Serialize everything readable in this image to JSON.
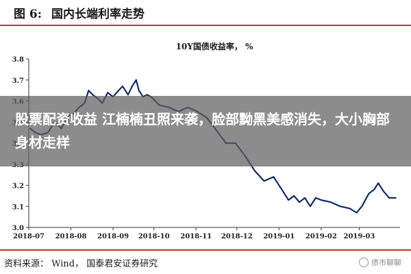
{
  "figure": {
    "number_label": "图 6:",
    "title": "国内长端利率走势"
  },
  "overlay": {
    "headline": "股票配资收益 江楠楠丑照来袭，脸部黝黑美感消失，大小胸部身材走样"
  },
  "source_line": "资料来源：  Wind，  国泰君安证券研究",
  "watermark": {
    "text": "债市聊聊",
    "icon": "circle-logo-icon"
  },
  "colors": {
    "line": "#0f2a6b",
    "accent": "#c03030"
  },
  "chart_data": {
    "type": "line",
    "title": "10Y国债收益率，  %",
    "xlabel": "",
    "ylabel": "",
    "ylim": [
      3.0,
      3.8
    ],
    "yticks": [
      "3.0",
      "3.1",
      "3.2",
      "3.3",
      "3.4",
      "3.5",
      "3.6",
      "3.7",
      "3.8"
    ],
    "xlim": [
      "2018-07-01",
      "2019-03-31"
    ],
    "xticks": [
      "2018-07",
      "2018-08",
      "2018-09",
      "2018-10",
      "2018-11",
      "2018-12",
      "2019-01",
      "2019-02",
      "2019-03"
    ],
    "grid": false,
    "legend": "none",
    "series": [
      {
        "x": [
          "2018-07-02",
          "2018-07-06",
          "2018-07-10",
          "2018-07-15",
          "2018-07-20",
          "2018-07-25",
          "2018-07-30",
          "2018-08-03",
          "2018-08-07",
          "2018-08-11",
          "2018-08-14",
          "2018-08-17",
          "2018-08-21",
          "2018-08-24",
          "2018-08-28",
          "2018-09-01",
          "2018-09-05",
          "2018-09-08",
          "2018-09-12",
          "2018-09-15",
          "2018-09-18",
          "2018-09-20",
          "2018-09-23",
          "2018-09-26",
          "2018-09-29",
          "2018-10-05",
          "2018-10-12",
          "2018-10-19",
          "2018-10-26",
          "2018-11-02",
          "2018-11-09",
          "2018-11-16",
          "2018-11-23",
          "2018-11-30",
          "2018-12-07",
          "2018-12-14",
          "2018-12-21",
          "2018-12-28",
          "2019-01-04",
          "2019-01-08",
          "2019-01-12",
          "2019-01-16",
          "2019-01-20",
          "2019-01-24",
          "2019-01-28",
          "2019-02-01",
          "2019-02-08",
          "2019-02-15",
          "2019-02-22",
          "2019-02-27",
          "2019-03-03",
          "2019-03-08",
          "2019-03-12",
          "2019-03-15",
          "2019-03-19",
          "2019-03-23",
          "2019-03-28"
        ],
        "values": [
          3.47,
          3.45,
          3.44,
          3.45,
          3.5,
          3.47,
          3.53,
          3.54,
          3.57,
          3.59,
          3.65,
          3.63,
          3.61,
          3.59,
          3.64,
          3.62,
          3.65,
          3.67,
          3.63,
          3.67,
          3.7,
          3.65,
          3.62,
          3.63,
          3.62,
          3.58,
          3.57,
          3.55,
          3.57,
          3.55,
          3.52,
          3.46,
          3.4,
          3.4,
          3.34,
          3.27,
          3.22,
          3.24,
          3.17,
          3.13,
          3.15,
          3.12,
          3.14,
          3.1,
          3.14,
          3.13,
          3.12,
          3.1,
          3.09,
          3.07,
          3.1,
          3.16,
          3.18,
          3.21,
          3.17,
          3.14,
          3.14
        ]
      }
    ]
  }
}
